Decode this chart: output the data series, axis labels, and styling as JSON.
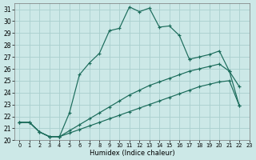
{
  "xlabel": "Humidex (Indice chaleur)",
  "bg_color": "#cce8e7",
  "grid_color": "#aad0ce",
  "line_color": "#1a6b5a",
  "xlim": [
    -0.5,
    23
  ],
  "ylim": [
    20,
    31.5
  ],
  "xticks": [
    0,
    1,
    2,
    3,
    4,
    5,
    6,
    7,
    8,
    9,
    10,
    11,
    12,
    13,
    14,
    15,
    16,
    17,
    18,
    19,
    20,
    21,
    22,
    23
  ],
  "yticks": [
    20,
    21,
    22,
    23,
    24,
    25,
    26,
    27,
    28,
    29,
    30,
    31
  ],
  "series": [
    {
      "x": [
        0,
        1,
        2,
        3,
        4,
        5,
        6,
        7,
        8,
        9,
        10,
        11,
        12,
        13,
        14,
        15,
        16,
        17
      ],
      "y": [
        21.5,
        21.5,
        20.7,
        20.3,
        20.3,
        22.3,
        25.5,
        26.5,
        27.3,
        29.2,
        29.4,
        31.2,
        30.8,
        31.1,
        29.5,
        29.6,
        28.8,
        26.8
      ]
    },
    {
      "x": [
        17,
        18,
        19,
        20,
        21,
        22
      ],
      "y": [
        26.8,
        27.0,
        27.2,
        27.5,
        25.8,
        24.5
      ]
    },
    {
      "x": [
        0,
        1,
        2,
        3,
        4,
        5,
        6,
        7,
        8,
        9,
        10,
        11,
        12,
        13,
        14,
        15,
        16,
        17,
        18,
        19,
        20,
        21,
        22
      ],
      "y": [
        21.5,
        21.5,
        20.7,
        20.3,
        20.3,
        20.8,
        21.3,
        21.8,
        22.3,
        22.8,
        23.3,
        23.8,
        24.2,
        24.6,
        24.9,
        25.2,
        25.5,
        25.8,
        26.0,
        26.2,
        26.4,
        25.8,
        22.9
      ]
    },
    {
      "x": [
        0,
        1,
        2,
        3,
        4,
        5,
        6,
        7,
        8,
        9,
        10,
        11,
        12,
        13,
        14,
        15,
        16,
        17,
        18,
        19,
        20,
        21,
        22
      ],
      "y": [
        21.5,
        21.5,
        20.7,
        20.3,
        20.3,
        20.6,
        20.9,
        21.2,
        21.5,
        21.8,
        22.1,
        22.4,
        22.7,
        23.0,
        23.3,
        23.6,
        23.9,
        24.2,
        24.5,
        24.7,
        24.9,
        25.0,
        22.9
      ]
    }
  ]
}
